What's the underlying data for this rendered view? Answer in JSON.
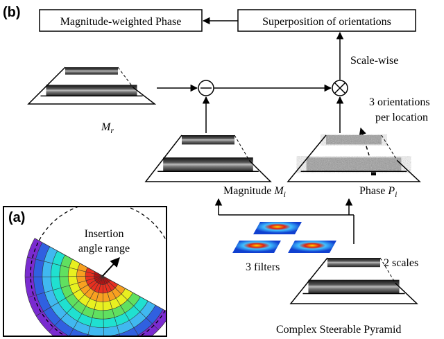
{
  "panel_b": {
    "label": "(b)",
    "output_box": "Magnitude-weighted Phase",
    "superposition_box": "Superposition of orientations",
    "scale_wise": "Scale-wise",
    "orientations_note": [
      "3 orientations",
      "per location"
    ],
    "residual": {
      "symbol": "M",
      "sub": "r"
    },
    "magnitude": {
      "label": "Magnitude",
      "symbol": "M",
      "sub": "i"
    },
    "phase": {
      "label": "Phase",
      "symbol": "P",
      "sub": "i"
    },
    "filters": "3 filters",
    "scales": "2 scales",
    "pyramid": "Complex Steerable Pyramid"
  },
  "panel_a": {
    "label": "(a)",
    "annotation": [
      "Insertion",
      "angle range"
    ]
  }
}
